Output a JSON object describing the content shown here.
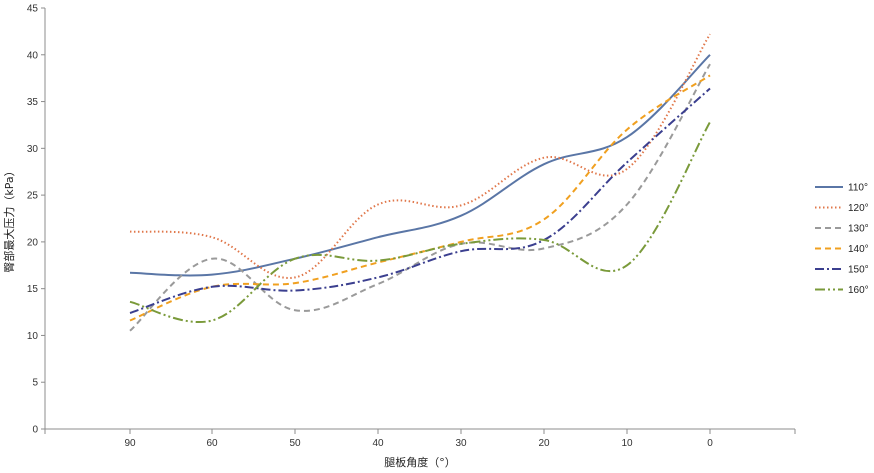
{
  "chart_data": {
    "type": "line",
    "title": "",
    "xlabel": "腿板角度（°）",
    "ylabel": "臀部最大压力（kPa）",
    "x_axis_reversed": true,
    "xlim": [
      100,
      -10
    ],
    "ylim": [
      0,
      45
    ],
    "x_ticks": [
      90,
      60,
      50,
      40,
      30,
      20,
      10,
      0
    ],
    "y_ticks": [
      0,
      5,
      10,
      15,
      20,
      25,
      30,
      35,
      40,
      45
    ],
    "grid": false,
    "legend_position": "right",
    "series": [
      {
        "name": "110°",
        "color": "#5a76a6",
        "dash": "solid",
        "x": [
          90,
          60,
          50,
          40,
          30,
          20,
          10,
          0
        ],
        "y": [
          16.7,
          16.5,
          18.2,
          20.5,
          22.8,
          28.3,
          31.2,
          40.0
        ]
      },
      {
        "name": "120°",
        "color": "#e0774a",
        "dash": "dotted",
        "x": [
          90,
          60,
          50,
          40,
          30,
          20,
          10,
          0
        ],
        "y": [
          21.1,
          20.5,
          16.2,
          24.0,
          23.9,
          29.0,
          27.8,
          42.2
        ]
      },
      {
        "name": "130°",
        "color": "#9a9a9a",
        "dash": "dashed",
        "x": [
          90,
          60,
          50,
          40,
          30,
          20,
          10,
          0
        ],
        "y": [
          10.5,
          18.2,
          12.7,
          15.5,
          19.8,
          19.3,
          24.0,
          39.0
        ]
      },
      {
        "name": "140°",
        "color": "#f0a020",
        "dash": "dashed",
        "x": [
          90,
          60,
          50,
          40,
          30,
          20,
          10,
          0
        ],
        "y": [
          11.6,
          15.2,
          15.6,
          17.8,
          20.0,
          22.4,
          32.0,
          37.8
        ]
      },
      {
        "name": "150°",
        "color": "#3b3f8f",
        "dash": "dashdot",
        "x": [
          90,
          60,
          50,
          40,
          30,
          20,
          10,
          0
        ],
        "y": [
          12.4,
          15.2,
          14.8,
          16.2,
          19.0,
          20.2,
          28.5,
          36.4
        ]
      },
      {
        "name": "160°",
        "color": "#7a9a3a",
        "dash": "dashdotdot",
        "x": [
          90,
          60,
          50,
          40,
          30,
          20,
          10,
          0
        ],
        "y": [
          13.6,
          11.6,
          18.2,
          18.0,
          19.8,
          20.2,
          17.5,
          32.8
        ]
      }
    ]
  }
}
